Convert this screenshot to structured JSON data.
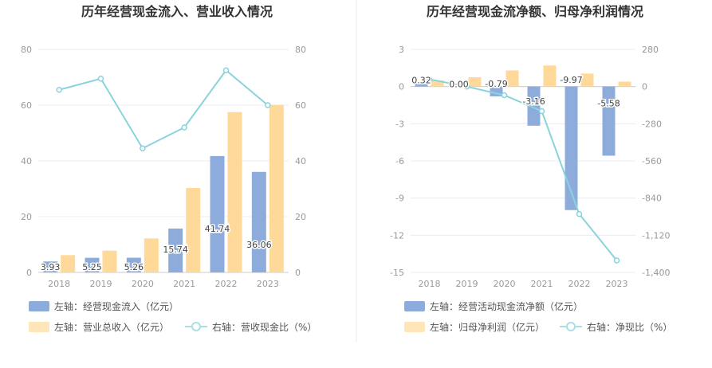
{
  "colors": {
    "bar_blue": "#8EACDB",
    "bar_orange": "#FFD99A",
    "line": "#8AD3DC",
    "grid": "#E8ECF3",
    "axis_text": "#999999"
  },
  "chart_data": [
    {
      "type": "bar",
      "title": "历年经营现金流入、营业收入情况",
      "categories": [
        "2018",
        "2019",
        "2020",
        "2021",
        "2022",
        "2023"
      ],
      "left_axis": {
        "ylim": [
          0,
          80
        ],
        "ticks": [
          "0",
          "20",
          "40",
          "60",
          "80"
        ]
      },
      "right_axis": {
        "ylim": [
          0,
          80
        ],
        "ticks": [
          "0",
          "20",
          "40",
          "60",
          "80"
        ]
      },
      "series": [
        {
          "name": "左轴：经营现金流入（亿元）",
          "type": "bar",
          "axis": "left",
          "values": [
            3.93,
            5.25,
            5.26,
            15.74,
            41.74,
            36.06
          ],
          "labels": [
            "3.93",
            "5.25",
            "5.26",
            "15.74",
            "41.74",
            "36.06"
          ]
        },
        {
          "name": "左轴：营业总收入（亿元）",
          "type": "bar",
          "axis": "left",
          "values": [
            6.2,
            7.8,
            12.2,
            30.3,
            57.5,
            60.1
          ]
        },
        {
          "name": "右轴：营收现金比（%）",
          "type": "line",
          "axis": "right",
          "values": [
            65.5,
            69.5,
            44.5,
            52.0,
            72.5,
            60.0
          ]
        }
      ],
      "legend_position": "bottom-left"
    },
    {
      "type": "bar",
      "title": "历年经营现金流净额、归母净利润情况",
      "categories": [
        "2018",
        "2019",
        "2020",
        "2021",
        "2022",
        "2023"
      ],
      "left_axis": {
        "ylim": [
          -15,
          3
        ],
        "ticks": [
          "3",
          "0",
          "-3",
          "-6",
          "-9",
          "-12",
          "-15"
        ]
      },
      "right_axis": {
        "ylim": [
          -1400,
          280
        ],
        "ticks": [
          "280",
          "0",
          "-280",
          "-560",
          "-840",
          "-1,120",
          "-1,400"
        ]
      },
      "series": [
        {
          "name": "左轴：经营活动现金流净额（亿元）",
          "type": "bar",
          "axis": "left",
          "values": [
            0.32,
            0.0,
            -0.79,
            -3.16,
            -9.97,
            -5.58
          ],
          "labels": [
            "0.32",
            "0.00",
            "-0.79",
            "-3.16",
            "-9.97",
            "-5.58"
          ]
        },
        {
          "name": "左轴：归母净利润（亿元）",
          "type": "bar",
          "axis": "left",
          "values": [
            0.5,
            0.75,
            1.3,
            1.7,
            1.05,
            0.4
          ]
        },
        {
          "name": "右轴：净现比（%）",
          "type": "line",
          "axis": "right",
          "values": [
            55,
            0,
            -65,
            -185,
            -960,
            -1310
          ]
        }
      ],
      "legend_position": "bottom-left"
    }
  ]
}
